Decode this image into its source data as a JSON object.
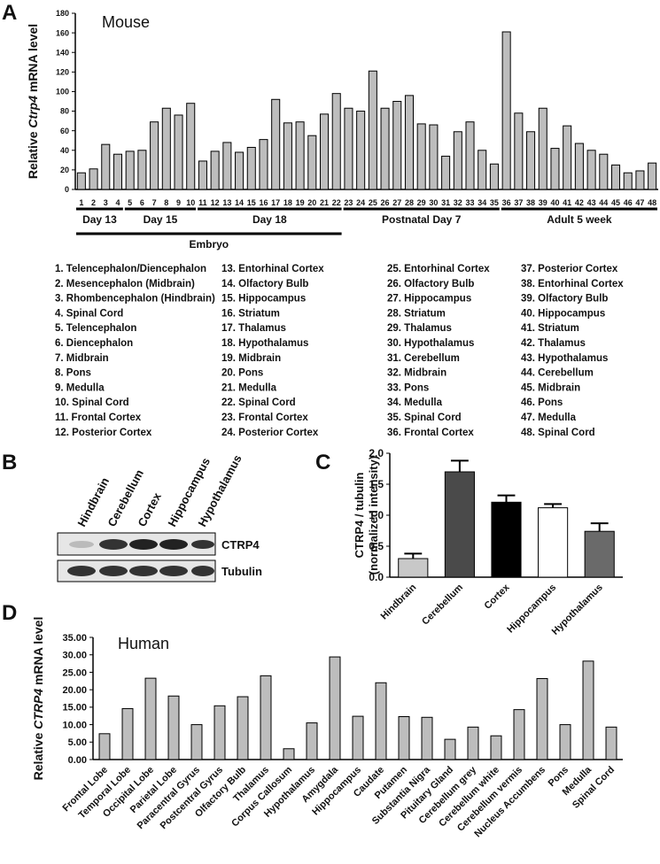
{
  "panel_labels": [
    "A",
    "B",
    "C",
    "D"
  ],
  "chart_data": [
    {
      "type": "bar",
      "annotation": "Mouse",
      "y_label": [
        "Relative ",
        "Ctrp4",
        " mRNA level"
      ],
      "categories": [
        "1",
        "2",
        "3",
        "4",
        "5",
        "6",
        "7",
        "8",
        "9",
        "10",
        "11",
        "12",
        "13",
        "14",
        "15",
        "16",
        "17",
        "18",
        "19",
        "20",
        "21",
        "22",
        "23",
        "24",
        "25",
        "26",
        "27",
        "28",
        "29",
        "30",
        "31",
        "32",
        "33",
        "34",
        "35",
        "36",
        "37",
        "38",
        "39",
        "40",
        "41",
        "42",
        "43",
        "44",
        "45",
        "46",
        "47",
        "48"
      ],
      "values": [
        17,
        21,
        46,
        36,
        39,
        40,
        69,
        83,
        76,
        88,
        29,
        39,
        48,
        38,
        43,
        51,
        92,
        68,
        69,
        55,
        77,
        98,
        83,
        80,
        121,
        83,
        90,
        96,
        67,
        66,
        34,
        59,
        69,
        40,
        26,
        161,
        78,
        59,
        83,
        42,
        65,
        47,
        40,
        36,
        25,
        17,
        19,
        27
      ],
      "color": "#bdbdbd",
      "ylim": [
        0,
        180
      ],
      "yticks": [
        0,
        20,
        40,
        60,
        80,
        100,
        120,
        140,
        160,
        180
      ],
      "group_labels": [
        "Day 13",
        "Day 15",
        "Day 18",
        "Postnatal Day 7",
        "Adult 5 week",
        "Embryo"
      ],
      "legend_items": [
        "1. Telencephalon/Diencephalon",
        "2. Mesencephalon (Midbrain)",
        "3. Rhombencephalon (Hindbrain)",
        "4. Spinal Cord",
        "5. Telencephalon",
        "6. Diencephalon",
        "7. Midbrain",
        "8. Pons",
        "9. Medulla",
        "10. Spinal Cord",
        "11. Frontal Cortex",
        "12. Posterior Cortex",
        "13. Entorhinal Cortex",
        "14. Olfactory Bulb",
        "15. Hippocampus",
        "16. Striatum",
        "17. Thalamus",
        "18. Hypothalamus",
        "19. Midbrain",
        "20. Pons",
        "21. Medulla",
        "22. Spinal Cord",
        "23. Frontal Cortex",
        "24. Posterior Cortex",
        "25. Entorhinal Cortex",
        "26. Olfactory Bulb",
        "27. Hippocampus",
        "28. Striatum",
        "29. Thalamus",
        "30. Hypothalamus",
        "31. Cerebellum",
        "32. Midbrain",
        "33. Pons",
        "34. Medulla",
        "35. Spinal Cord",
        "36. Frontal Cortex",
        "37. Posterior Cortex",
        "38. Entorhinal Cortex",
        "39. Olfactory Bulb",
        "40. Hippocampus",
        "41. Striatum",
        "42. Thalamus",
        "43. Hypothalamus",
        "44. Cerebellum",
        "45. Midbrain",
        "46. Pons",
        "47. Medulla",
        "48. Spinal Cord"
      ]
    },
    {
      "type": "bar",
      "y_label": [
        "CTRP4 / tubulin",
        "(normalized intensity)"
      ],
      "categories": [
        "Hindbrain",
        "Cerebellum",
        "Cortex",
        "Hippocampus",
        "Hypothalamus"
      ],
      "values": [
        0.3,
        1.7,
        1.21,
        1.12,
        0.74
      ],
      "errors": [
        0.08,
        0.18,
        0.11,
        0.06,
        0.13
      ],
      "colors": [
        "#c8c8c8",
        "#4a4a4a",
        "#000000",
        "#ffffff",
        "#6a6a6a"
      ],
      "ylim": [
        0,
        2.0
      ],
      "yticks": [
        {
          "value": 0,
          "label": "0.0"
        },
        {
          "value": 0.5,
          "label": "0.5"
        },
        {
          "value": 1,
          "label": "1.0"
        },
        {
          "value": 1.5,
          "label": "1.5"
        },
        {
          "value": 2,
          "label": "2.0"
        }
      ]
    },
    {
      "type": "bar",
      "annotation": "Human",
      "y_label": [
        "Relative ",
        "CTRP4",
        " mRNA level"
      ],
      "categories": [
        "Frontal Lobe",
        "Temporal Lobe",
        "Occipital Lobe",
        "Parietal Lobe",
        "Paracentral Gyrus",
        "Postcentral Gyrus",
        "Olfactory Bulb",
        "Thalamus",
        "Corpus Callosum",
        "Hypothalamus",
        "Amygdala",
        "Hippocampus",
        "Caudate",
        "Putamen",
        "Substantia Nigra",
        "Pituitary Gland",
        "Cerebellum grey",
        "Cerebellum white",
        "Cerebellum vermis",
        "Nucleus Accumbens",
        "Pons",
        "Medulla",
        "Spinal Cord"
      ],
      "values": [
        7.4,
        14.6,
        23.3,
        18.2,
        10.0,
        15.4,
        18.0,
        24.0,
        3.1,
        10.5,
        29.4,
        12.4,
        22.0,
        12.3,
        12.1,
        5.8,
        9.3,
        6.8,
        14.3,
        23.2,
        10.0,
        28.2,
        9.3
      ],
      "color": "#bdbdbd",
      "ylim": [
        0,
        35
      ],
      "yticks": [
        {
          "value": 0,
          "label": "0.00"
        },
        {
          "value": 5,
          "label": "5.00"
        },
        {
          "value": 10,
          "label": "10.00"
        },
        {
          "value": 15,
          "label": "15.00"
        },
        {
          "value": 20,
          "label": "20.00"
        },
        {
          "value": 25,
          "label": "25.00"
        },
        {
          "value": 30,
          "label": "30.00"
        },
        {
          "value": 35,
          "label": "35.00"
        }
      ]
    }
  ],
  "blot": {
    "lanes": [
      "Hindbrain",
      "Cerebellum",
      "Cortex",
      "Hippocampus",
      "Hypothalamus"
    ],
    "rows": [
      "CTRP4",
      "Tubulin"
    ]
  }
}
